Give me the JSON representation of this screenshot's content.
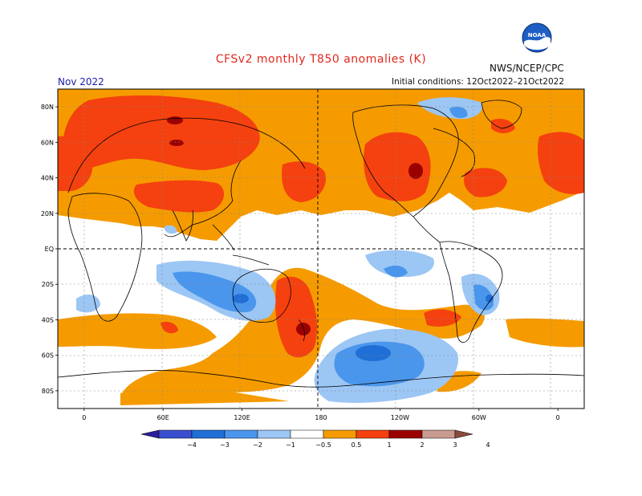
{
  "title": "CFSv2 monthly T850 anomalies (K)",
  "agency": "NWS/NCEP/CPC",
  "logo_text": "NOAA",
  "month": "Nov 2022",
  "initial_conditions": "Initial conditions: 12Oct2022–21Oct2022",
  "lat_labels": [
    "80N",
    "60N",
    "40N",
    "20N",
    "EQ",
    "20S",
    "40S",
    "60S",
    "80S"
  ],
  "lat_values": [
    80,
    60,
    40,
    20,
    0,
    -20,
    -40,
    -60,
    -80
  ],
  "lon_labels": [
    "0",
    "60E",
    "120E",
    "180",
    "120W",
    "60W",
    "0"
  ],
  "lon_values": [
    0,
    60,
    120,
    180,
    240,
    300,
    360
  ],
  "colorbar": {
    "labels": [
      "−4",
      "−3",
      "−2",
      "−1",
      "−0.5",
      "0.5",
      "1",
      "2",
      "3",
      "4"
    ],
    "colors": [
      "#2a1f9a",
      "#3a4fcf",
      "#1f6fd6",
      "#4a96ec",
      "#9cc6f4",
      "#ffffff",
      "#f59b00",
      "#f4410f",
      "#9b0000",
      "#c89a90",
      "#8a4a3a"
    ]
  },
  "colors": {
    "warm1": "#f59b00",
    "warm2": "#f4410f",
    "warm3": "#9b0000",
    "cool1": "#9cc6f4",
    "cool2": "#4a96ec",
    "cool3": "#1f6fd6"
  }
}
